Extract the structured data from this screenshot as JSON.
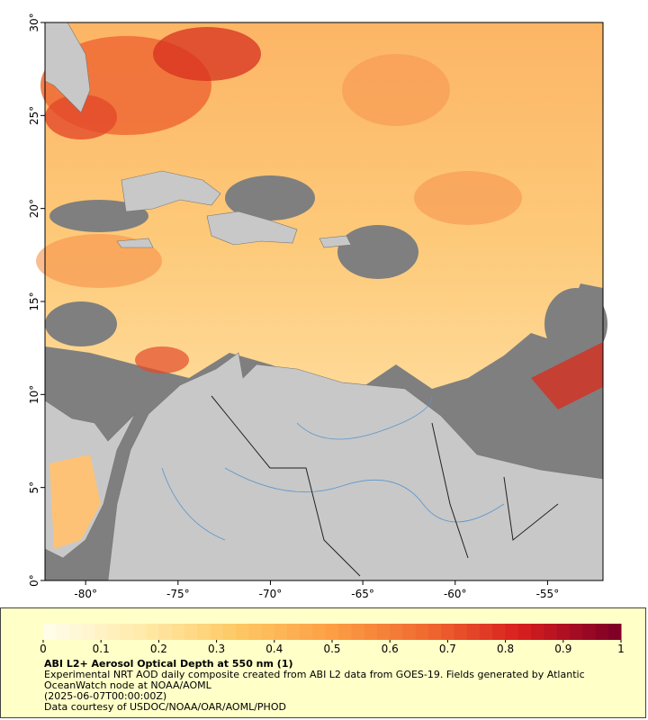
{
  "map": {
    "xlim": [
      -82.2,
      -52
    ],
    "ylim": [
      0,
      30
    ],
    "xticks": [
      {
        "value": -80,
        "label": "-80°"
      },
      {
        "value": -75,
        "label": "-75°"
      },
      {
        "value": -70,
        "label": "-70°"
      },
      {
        "value": -65,
        "label": "-65°"
      },
      {
        "value": -60,
        "label": "-60°"
      },
      {
        "value": -55,
        "label": "-55°"
      }
    ],
    "yticks": [
      {
        "value": 0,
        "label": "0°"
      },
      {
        "value": 5,
        "label": "5°"
      },
      {
        "value": 10,
        "label": "10°"
      },
      {
        "value": 15,
        "label": "15°"
      },
      {
        "value": 20,
        "label": "20°"
      },
      {
        "value": 25,
        "label": "25°"
      },
      {
        "value": 30,
        "label": "30°"
      }
    ]
  },
  "legend": {
    "title": "ABI L2+ Aerosol Optical Depth at 550 nm (1)",
    "lines": [
      "Experimental NRT AOD daily composite created from ABI L2 data from GOES-19. Fields generated by Atlantic",
      "OceanWatch node at NOAA/AOML",
      "(2025-06-07T00:00:00Z)",
      "Data courtesy of USDOC/NOAA/OAR/AOML/PHOD"
    ],
    "colorbar": {
      "lim": [
        0,
        1
      ],
      "ticks": [
        0,
        0.1,
        0.2,
        0.3,
        0.4,
        0.5,
        0.6,
        0.7,
        0.8,
        0.9,
        1
      ],
      "colors": [
        "#fffde8",
        "#ffeaa8",
        "#fec864",
        "#fd9e45",
        "#f06a30",
        "#d81e1e",
        "#800026"
      ]
    }
  }
}
